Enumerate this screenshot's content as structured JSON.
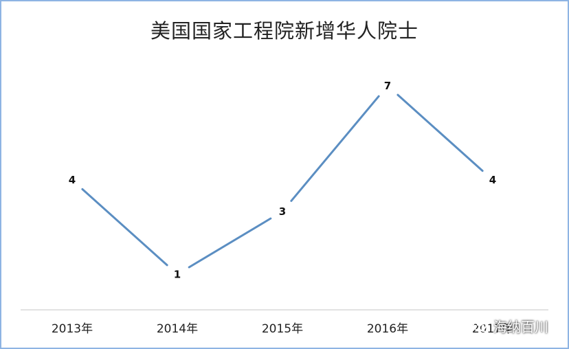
{
  "watermark": "海纳百川",
  "colors": {
    "line": "#5b8ec2",
    "frame": "#8eb4e3",
    "axis": "#d9d9d9"
  },
  "chart_data": {
    "type": "line",
    "title": "美国国家工程院新增华人院士",
    "categories": [
      "2013年",
      "2014年",
      "2015年",
      "2016年",
      "2017年"
    ],
    "series": [
      {
        "values": [
          4,
          1,
          3,
          7,
          4
        ]
      }
    ],
    "data_labels": [
      "4",
      "1",
      "3",
      "7",
      "4"
    ],
    "ylim": [
      0,
      8
    ],
    "grid": false,
    "legend": "none"
  }
}
